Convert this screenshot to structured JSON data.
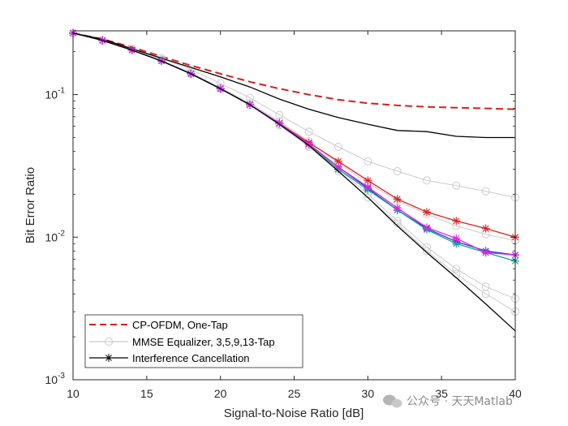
{
  "chart_data": {
    "type": "line",
    "title": "",
    "xlabel": "Signal-to-Noise Ratio [dB]",
    "ylabel": "Bit Error Ratio",
    "yscale": "log",
    "xlim": [
      10,
      40
    ],
    "ylim": [
      0.001,
      0.28
    ],
    "xticks": [
      10,
      15,
      20,
      25,
      30,
      35,
      40
    ],
    "xtick_labels": [
      "10",
      "15",
      "20",
      "25",
      "30",
      "35",
      "40"
    ],
    "yticks": [
      0.001,
      0.01,
      0.1
    ],
    "ytick_labels": [
      {
        "base": "10",
        "exp": "-3"
      },
      {
        "base": "10",
        "exp": "-2"
      },
      {
        "base": "10",
        "exp": "-1"
      }
    ],
    "legend_location": "bottom-left",
    "legend": [
      "CP-OFDM, One-Tap",
      "MMSE Equalizer, 3,5,9,13-Tap",
      "Interference Cancellation"
    ],
    "series": [
      {
        "name": "CP-OFDM, One-Tap",
        "color": "#d42020",
        "style": "dashed",
        "marker": "none",
        "x": [
          10,
          12,
          14,
          16,
          18,
          20,
          22,
          24,
          26,
          28,
          30,
          32,
          34,
          36,
          38,
          40
        ],
        "y": [
          0.27,
          0.245,
          0.215,
          0.185,
          0.16,
          0.14,
          0.123,
          0.11,
          0.1,
          0.092,
          0.087,
          0.084,
          0.082,
          0.081,
          0.08,
          0.079
        ]
      },
      {
        "name": "MMSE Equalizer, 3-Tap",
        "color": "#cccccc",
        "style": "solid",
        "marker": "circle",
        "x": [
          10,
          12,
          14,
          16,
          18,
          20,
          22,
          24,
          26,
          28,
          30,
          32,
          34,
          36,
          38,
          40
        ],
        "y": [
          0.27,
          0.24,
          0.21,
          0.18,
          0.15,
          0.12,
          0.095,
          0.072,
          0.055,
          0.043,
          0.034,
          0.029,
          0.025,
          0.023,
          0.021,
          0.019
        ]
      },
      {
        "name": "MMSE Equalizer, 5-Tap",
        "color": "#cccccc",
        "style": "solid",
        "marker": "circle",
        "x": [
          10,
          12,
          14,
          16,
          18,
          20,
          22,
          24,
          26,
          28,
          30,
          32,
          34,
          36,
          38,
          40
        ],
        "y": [
          0.27,
          0.24,
          0.21,
          0.175,
          0.142,
          0.112,
          0.087,
          0.065,
          0.047,
          0.033,
          0.024,
          0.018,
          0.0145,
          0.012,
          0.0105,
          0.0095
        ]
      },
      {
        "name": "MMSE Equalizer, 9-Tap",
        "color": "#cccccc",
        "style": "solid",
        "marker": "circle",
        "x": [
          10,
          12,
          14,
          16,
          18,
          20,
          22,
          24,
          26,
          28,
          30,
          32,
          34,
          36,
          38,
          40
        ],
        "y": [
          0.27,
          0.24,
          0.21,
          0.175,
          0.14,
          0.11,
          0.084,
          0.062,
          0.044,
          0.03,
          0.02,
          0.013,
          0.0085,
          0.006,
          0.0045,
          0.0037
        ]
      },
      {
        "name": "MMSE Equalizer, 13-Tap",
        "color": "#cccccc",
        "style": "solid",
        "marker": "circle",
        "x": [
          10,
          12,
          14,
          16,
          18,
          20,
          22,
          24,
          26,
          28,
          30,
          32,
          34,
          36,
          38,
          40
        ],
        "y": [
          0.27,
          0.24,
          0.21,
          0.175,
          0.14,
          0.11,
          0.084,
          0.061,
          0.043,
          0.029,
          0.019,
          0.0125,
          0.008,
          0.0055,
          0.004,
          0.003
        ]
      },
      {
        "name": "Interference Cancellation, One-Tap",
        "color": "#000000",
        "style": "solid",
        "marker": "none",
        "x": [
          10,
          12,
          14,
          16,
          18,
          20,
          22,
          24,
          26,
          28,
          30,
          32,
          34,
          36,
          38,
          40
        ],
        "y": [
          0.27,
          0.245,
          0.21,
          0.18,
          0.155,
          0.133,
          0.113,
          0.093,
          0.079,
          0.069,
          0.062,
          0.056,
          0.055,
          0.051,
          0.05,
          0.05
        ]
      },
      {
        "name": "Interference Cancellation (red)",
        "color": "#e02020",
        "style": "solid",
        "marker": "star",
        "x": [
          10,
          12,
          14,
          16,
          18,
          20,
          22,
          24,
          26,
          28,
          30,
          32,
          34,
          36,
          38,
          40
        ],
        "y": [
          0.27,
          0.24,
          0.205,
          0.172,
          0.14,
          0.11,
          0.085,
          0.063,
          0.046,
          0.034,
          0.025,
          0.0185,
          0.015,
          0.013,
          0.0115,
          0.01
        ]
      },
      {
        "name": "Interference Cancellation (blue)",
        "color": "#1f3fd0",
        "style": "solid",
        "marker": "star",
        "x": [
          10,
          12,
          14,
          16,
          18,
          20,
          22,
          24,
          26,
          28,
          30,
          32,
          34,
          36,
          38,
          40
        ],
        "y": [
          0.27,
          0.24,
          0.205,
          0.172,
          0.14,
          0.11,
          0.085,
          0.063,
          0.045,
          0.031,
          0.022,
          0.0155,
          0.0115,
          0.0093,
          0.008,
          0.0075
        ]
      },
      {
        "name": "Interference Cancellation (teal)",
        "color": "#149e9e",
        "style": "solid",
        "marker": "star",
        "x": [
          10,
          12,
          14,
          16,
          18,
          20,
          22,
          24,
          26,
          28,
          30,
          32,
          34,
          36,
          38,
          40
        ],
        "y": [
          0.27,
          0.24,
          0.205,
          0.172,
          0.14,
          0.11,
          0.085,
          0.063,
          0.045,
          0.03,
          0.0215,
          0.0155,
          0.0113,
          0.009,
          0.0078,
          0.0068
        ]
      },
      {
        "name": "Interference Cancellation (magenta)",
        "color": "#e020e0",
        "style": "solid",
        "marker": "star",
        "x": [
          10,
          12,
          14,
          16,
          18,
          20,
          22,
          24,
          26,
          28,
          30,
          32,
          34,
          36,
          38,
          40
        ],
        "y": [
          0.27,
          0.24,
          0.205,
          0.172,
          0.14,
          0.11,
          0.085,
          0.063,
          0.045,
          0.031,
          0.0225,
          0.016,
          0.0117,
          0.0098,
          0.0078,
          0.0075
        ]
      },
      {
        "name": "Interference Cancellation (black)",
        "color": "#000000",
        "style": "solid",
        "marker": "none",
        "x": [
          10,
          12,
          14,
          16,
          18,
          20,
          22,
          24,
          26,
          28,
          30,
          32,
          34,
          36,
          38,
          40
        ],
        "y": [
          0.27,
          0.24,
          0.205,
          0.172,
          0.14,
          0.11,
          0.085,
          0.062,
          0.044,
          0.029,
          0.019,
          0.012,
          0.0078,
          0.0052,
          0.0034,
          0.0022
        ]
      }
    ]
  },
  "watermark": "公众号 · 天天Matlab"
}
